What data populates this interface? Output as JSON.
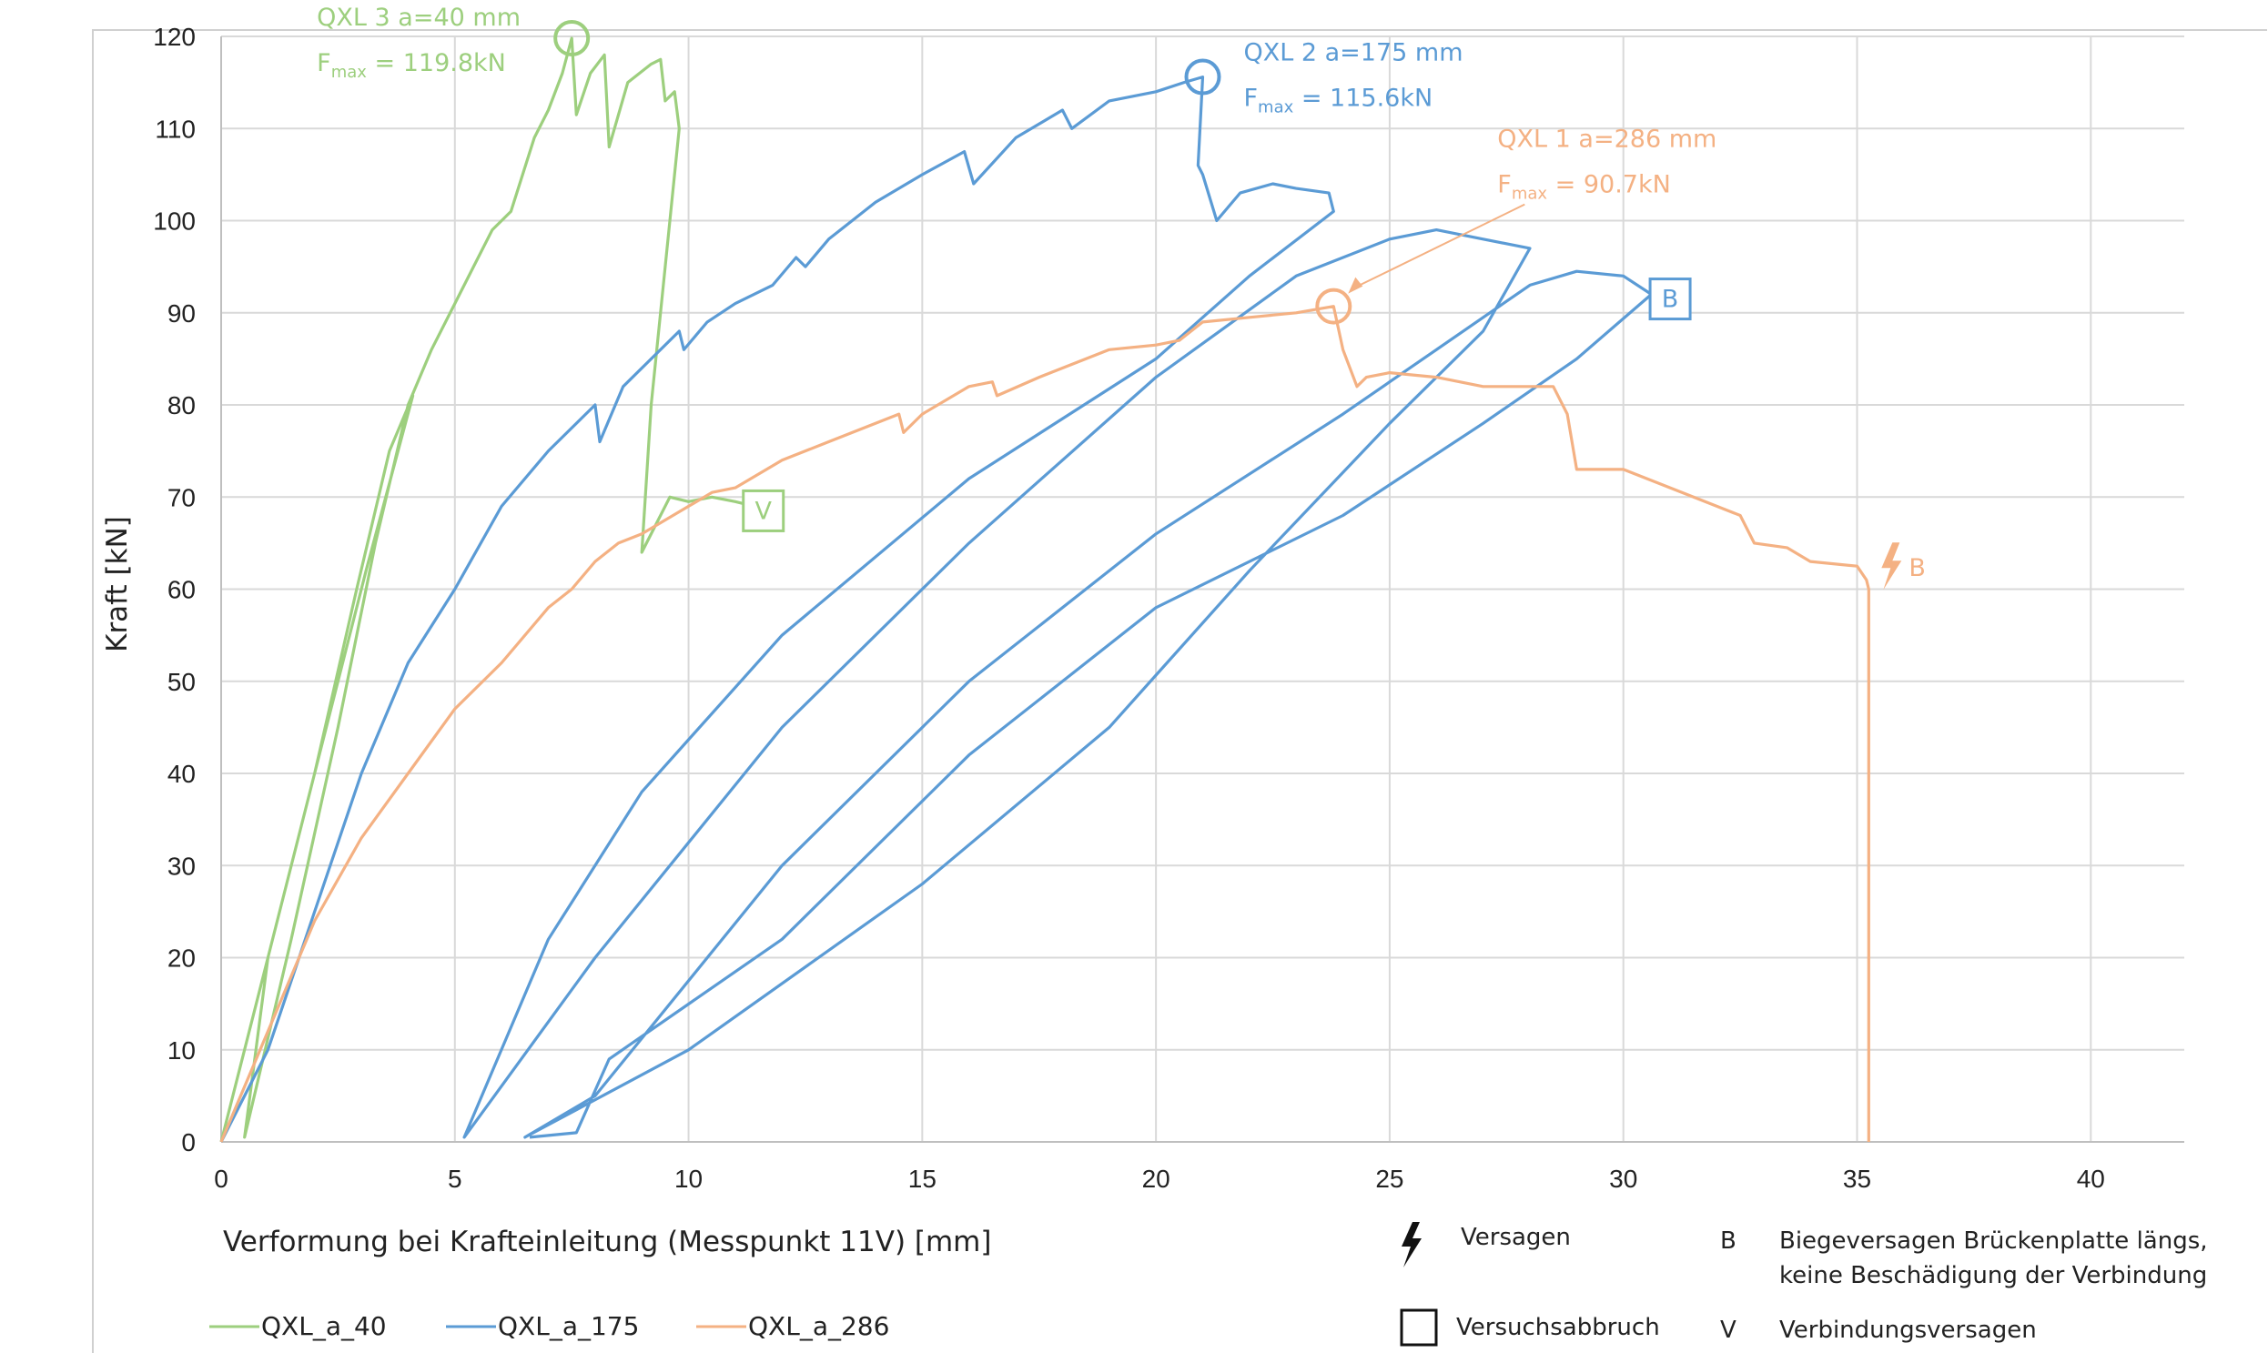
{
  "chart_data": {
    "type": "line",
    "xlabel": "Verformung bei Krafteinleitung (Messpunkt 11V) [mm]",
    "ylabel": "Kraft [kN]",
    "xlim": [
      0,
      42
    ],
    "ylim": [
      0,
      120
    ],
    "x_ticks": [
      "0",
      "5",
      "10",
      "15",
      "20",
      "25",
      "30",
      "35",
      "40"
    ],
    "y_ticks": [
      "0",
      "10",
      "20",
      "30",
      "40",
      "50",
      "60",
      "70",
      "80",
      "90",
      "100",
      "110",
      "120"
    ],
    "grid": true,
    "legend_position": "bottom",
    "series": [
      {
        "name": "QXL_a_40",
        "color": "#9dcf7e",
        "points": [
          [
            0.0,
            0.0
          ],
          [
            1.0,
            20.0
          ],
          [
            2.0,
            40.0
          ],
          [
            2.9,
            60.0
          ],
          [
            3.6,
            75.0
          ],
          [
            4.1,
            81.0
          ],
          [
            3.1,
            62.0
          ],
          [
            2.0,
            40.0
          ],
          [
            1.0,
            20.0
          ],
          [
            0.5,
            0.5
          ],
          [
            1.5,
            22.0
          ],
          [
            2.5,
            45.0
          ],
          [
            3.3,
            65.0
          ],
          [
            4.0,
            80.0
          ],
          [
            4.5,
            86.0
          ],
          [
            5.0,
            91.0
          ],
          [
            5.4,
            95.0
          ],
          [
            5.8,
            99.0
          ],
          [
            6.2,
            101.0
          ],
          [
            6.7,
            109.0
          ],
          [
            7.0,
            112.0
          ],
          [
            7.3,
            116.0
          ],
          [
            7.5,
            119.8
          ],
          [
            7.6,
            111.5
          ],
          [
            7.9,
            116.0
          ],
          [
            8.2,
            118.0
          ],
          [
            8.3,
            108.0
          ],
          [
            8.7,
            115.0
          ],
          [
            9.2,
            117.0
          ],
          [
            9.4,
            117.5
          ],
          [
            9.5,
            113.0
          ],
          [
            9.7,
            114.0
          ],
          [
            9.8,
            110.0
          ],
          [
            9.5,
            95.0
          ],
          [
            9.2,
            80.0
          ],
          [
            9.0,
            64.0
          ],
          [
            9.3,
            67.0
          ],
          [
            9.6,
            70.0
          ],
          [
            10.0,
            69.5
          ],
          [
            10.5,
            70.0
          ],
          [
            11.0,
            69.5
          ],
          [
            11.4,
            69.0
          ]
        ]
      },
      {
        "name": "QXL_a_175",
        "color": "#5b9bd5",
        "points": [
          [
            0.0,
            0.0
          ],
          [
            1.0,
            10.0
          ],
          [
            2.0,
            25.0
          ],
          [
            3.0,
            40.0
          ],
          [
            4.0,
            52.0
          ],
          [
            5.0,
            60.0
          ],
          [
            6.0,
            69.0
          ],
          [
            7.0,
            75.0
          ],
          [
            7.8,
            79.0
          ],
          [
            8.0,
            80.0
          ],
          [
            8.1,
            76.0
          ],
          [
            8.6,
            82.0
          ],
          [
            9.2,
            85.0
          ],
          [
            9.8,
            88.0
          ],
          [
            9.9,
            86.0
          ],
          [
            10.4,
            89.0
          ],
          [
            11.0,
            91.0
          ],
          [
            11.8,
            93.0
          ],
          [
            12.3,
            96.0
          ],
          [
            12.5,
            95.0
          ],
          [
            13.0,
            98.0
          ],
          [
            14.0,
            102.0
          ],
          [
            15.0,
            105.0
          ],
          [
            15.9,
            107.5
          ],
          [
            16.1,
            104.0
          ],
          [
            17.0,
            109.0
          ],
          [
            18.0,
            112.0
          ],
          [
            18.2,
            110.0
          ],
          [
            19.0,
            113.0
          ],
          [
            20.0,
            114.0
          ],
          [
            20.6,
            115.0
          ],
          [
            21.0,
            115.6
          ],
          [
            20.9,
            106.0
          ],
          [
            21.0,
            105.0
          ],
          [
            21.3,
            100.0
          ],
          [
            21.8,
            103.0
          ],
          [
            22.5,
            104.0
          ],
          [
            23.0,
            103.5
          ],
          [
            23.7,
            103.0
          ],
          [
            23.8,
            101.0
          ],
          [
            22.0,
            94.0
          ],
          [
            20.0,
            85.0
          ],
          [
            16.0,
            72.0
          ],
          [
            12.0,
            55.0
          ],
          [
            9.0,
            38.0
          ],
          [
            7.0,
            22.0
          ],
          [
            5.2,
            0.5
          ],
          [
            8.0,
            20.0
          ],
          [
            12.0,
            45.0
          ],
          [
            16.0,
            65.0
          ],
          [
            20.0,
            83.0
          ],
          [
            23.0,
            94.0
          ],
          [
            25.0,
            98.0
          ],
          [
            26.0,
            99.0
          ],
          [
            27.0,
            98.0
          ],
          [
            28.0,
            97.0
          ],
          [
            27.0,
            88.0
          ],
          [
            25.0,
            78.0
          ],
          [
            22.0,
            62.0
          ],
          [
            19.0,
            45.0
          ],
          [
            15.0,
            28.0
          ],
          [
            10.0,
            10.0
          ],
          [
            6.5,
            0.5
          ],
          [
            8.0,
            5.0
          ],
          [
            12.0,
            30.0
          ],
          [
            16.0,
            50.0
          ],
          [
            20.0,
            66.0
          ],
          [
            24.0,
            79.0
          ],
          [
            26.0,
            86.0
          ],
          [
            28.0,
            93.0
          ],
          [
            29.0,
            94.5
          ],
          [
            30.0,
            94.0
          ],
          [
            30.6,
            92.0
          ],
          [
            29.0,
            85.0
          ],
          [
            27.0,
            78.0
          ],
          [
            24.0,
            68.0
          ],
          [
            20.0,
            58.0
          ],
          [
            16.0,
            42.0
          ],
          [
            12.0,
            22.0
          ],
          [
            8.3,
            9.0
          ],
          [
            7.6,
            1.0
          ],
          [
            6.6,
            0.5
          ]
        ]
      },
      {
        "name": "QXL_a_286",
        "color": "#f4b183",
        "points": [
          [
            0.0,
            0.0
          ],
          [
            1.0,
            12.0
          ],
          [
            2.0,
            24.0
          ],
          [
            3.0,
            33.0
          ],
          [
            4.0,
            40.0
          ],
          [
            5.0,
            47.0
          ],
          [
            6.0,
            52.0
          ],
          [
            7.0,
            58.0
          ],
          [
            7.5,
            60.0
          ],
          [
            8.0,
            63.0
          ],
          [
            8.5,
            65.0
          ],
          [
            9.0,
            66.0
          ],
          [
            10.0,
            69.0
          ],
          [
            10.5,
            70.5
          ],
          [
            11.0,
            71.0
          ],
          [
            12.0,
            74.0
          ],
          [
            13.0,
            76.0
          ],
          [
            14.0,
            78.0
          ],
          [
            14.5,
            79.0
          ],
          [
            14.6,
            77.0
          ],
          [
            15.0,
            79.0
          ],
          [
            16.0,
            82.0
          ],
          [
            16.5,
            82.5
          ],
          [
            16.6,
            81.0
          ],
          [
            17.5,
            83.0
          ],
          [
            18.0,
            84.0
          ],
          [
            18.5,
            85.0
          ],
          [
            19.0,
            86.0
          ],
          [
            20.0,
            86.5
          ],
          [
            20.5,
            87.0
          ],
          [
            21.0,
            89.0
          ],
          [
            22.0,
            89.5
          ],
          [
            23.0,
            90.0
          ],
          [
            23.8,
            90.7
          ],
          [
            24.0,
            86.0
          ],
          [
            24.3,
            82.0
          ],
          [
            24.5,
            83.0
          ],
          [
            25.0,
            83.5
          ],
          [
            26.0,
            83.0
          ],
          [
            27.0,
            82.0
          ],
          [
            28.0,
            82.0
          ],
          [
            28.5,
            82.0
          ],
          [
            28.8,
            79.0
          ],
          [
            29.0,
            73.0
          ],
          [
            30.0,
            73.0
          ],
          [
            31.0,
            71.0
          ],
          [
            32.0,
            69.0
          ],
          [
            32.5,
            68.0
          ],
          [
            32.8,
            65.0
          ],
          [
            33.5,
            64.5
          ],
          [
            34.0,
            63.0
          ],
          [
            35.0,
            62.5
          ],
          [
            35.2,
            61.0
          ],
          [
            35.25,
            60.0
          ],
          [
            35.25,
            0.0
          ]
        ]
      }
    ],
    "annotations": [
      {
        "series": "QXL_a_40",
        "line1": "QXL 3 a=40 mm",
        "line2_main": "F",
        "line2_sub": "max",
        "line2_value": " = 119.8kN",
        "marker": [
          7.5,
          119.8
        ]
      },
      {
        "series": "QXL_a_175",
        "line1": "QXL 2 a=175 mm",
        "line2_main": "F",
        "line2_sub": "max",
        "line2_value": " = 115.6kN",
        "marker": [
          21.0,
          115.6
        ]
      },
      {
        "series": "QXL_a_286",
        "line1": "QXL 1 a=286 mm",
        "line2_main": "F",
        "line2_sub": "max",
        "line2_value": " = 90.7kN",
        "marker": [
          23.8,
          90.7
        ]
      }
    ],
    "end_markers": [
      {
        "series": "QXL_a_40",
        "label": "V",
        "at": [
          11.6,
          68.5
        ],
        "kind": "box"
      },
      {
        "series": "QXL_a_175",
        "label": "B",
        "at": [
          31.0,
          91.5
        ],
        "kind": "box"
      },
      {
        "series": "QXL_a_286",
        "label": "B",
        "at": [
          35.6,
          62.5
        ],
        "kind": "bolt"
      }
    ]
  },
  "legend_notes": {
    "bolt_label": "Versagen",
    "box_label": "Versuchsabbruch",
    "b_letter": "B",
    "b_text_line1": "Biegeversagen Brückenplatte längs,",
    "b_text_line2": "keine Beschädigung der Verbindung",
    "v_letter": "V",
    "v_text": "Verbindungsversagen"
  }
}
